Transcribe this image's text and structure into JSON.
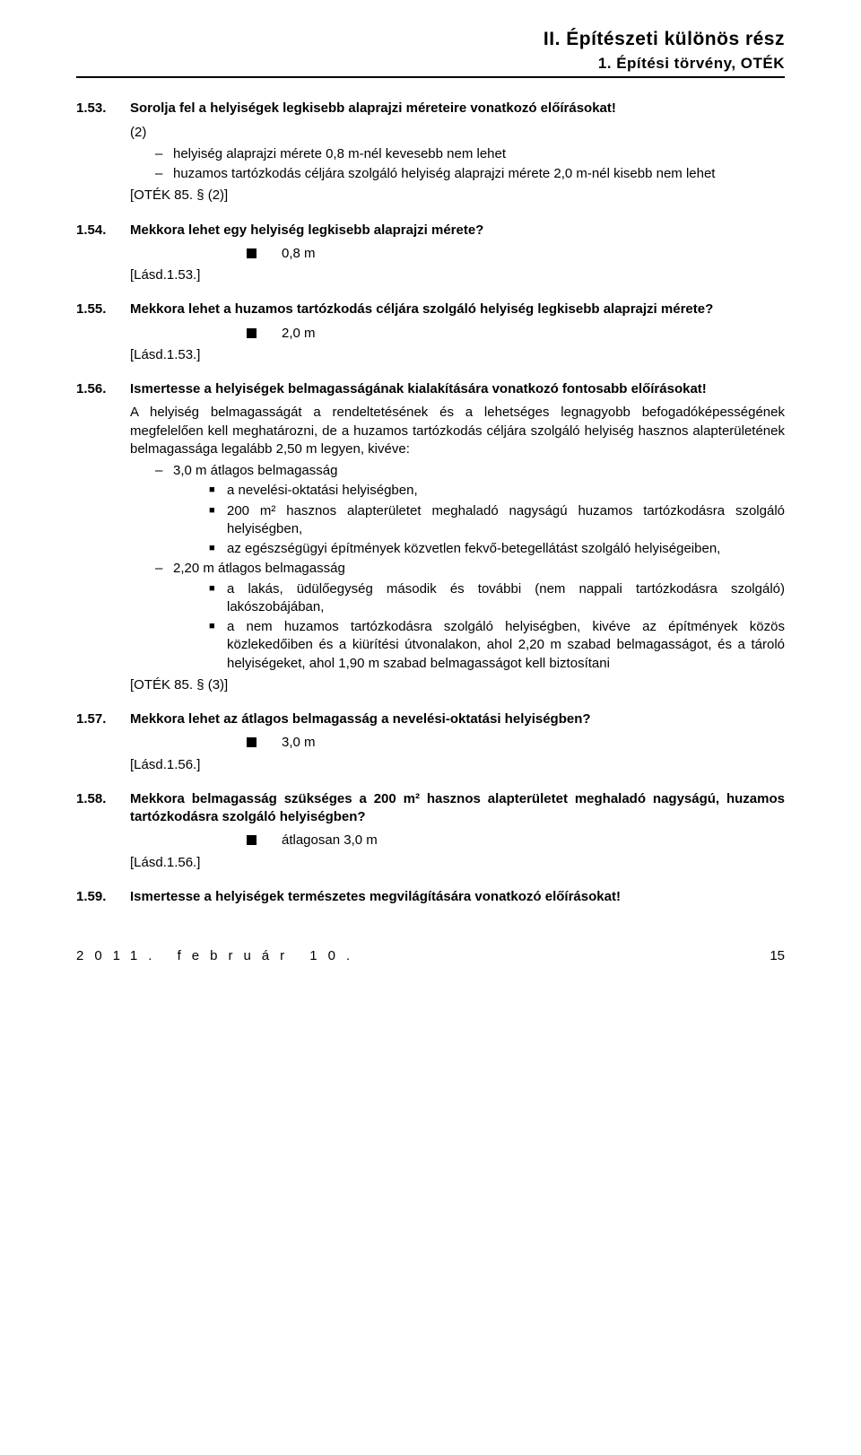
{
  "header": {
    "line1": "II. Építészeti különös rész",
    "line2": "1. Építési törvény, OTÉK"
  },
  "items": [
    {
      "num": "1.53.",
      "question": "Sorolja fel a helyiségek legkisebb alaprajzi méreteire vonatkozó előírásokat!",
      "paren": "(2)",
      "dashes": [
        "helyiség alaprajzi mérete 0,8 m-nél kevesebb nem lehet",
        "huzamos tartózkodás céljára szolgáló helyiség alaprajzi mérete 2,0 m-nél kisebb nem lehet"
      ],
      "citation": "[OTÉK 85. § (2)]"
    },
    {
      "num": "1.54.",
      "question": "Mekkora lehet egy helyiség legkisebb alaprajzi mérete?",
      "answer": "0,8 m",
      "citation": "[Lásd.1.53.]"
    },
    {
      "num": "1.55.",
      "question": "Mekkora lehet a huzamos tartózkodás céljára szolgáló helyiség legkisebb alaprajzi mérete?",
      "answer": "2,0 m",
      "citation": "[Lásd.1.53.]"
    },
    {
      "num": "1.56.",
      "question": "Ismertesse a helyiségek belmagasságának kialakítására vonatkozó fontosabb előírásokat!",
      "para": "A helyiség belmagasságát a rendeltetésének és a lehetséges legnagyobb befogadóképességének megfelelően kell meghatározni, de a huzamos tartózkodás céljára szolgáló helyiség hasznos alapterületének belmagassága legalább 2,50 m legyen, kivéve:",
      "sub": [
        {
          "dash": "3,0 m átlagos belmagasság",
          "squares": [
            "a nevelési-oktatási helyiségben,",
            "200 m² hasznos alapterületet meghaladó nagyságú huzamos tartózkodásra szolgáló helyiségben,",
            "az egészségügyi építmények közvetlen fekvő-betegellátást szolgáló helyiségeiben,"
          ]
        },
        {
          "dash": "2,20 m átlagos belmagasság",
          "squares": [
            "a lakás, üdülőegység második és további (nem nappali tartózkodásra szolgáló) lakószobájában,",
            "a nem huzamos tartózkodásra szolgáló helyiségben, kivéve az építmények közös közlekedőiben és a kiürítési útvonalakon, ahol 2,20 m szabad belmagasságot, és a tároló helyiségeket, ahol 1,90 m szabad belmagasságot kell biztosítani"
          ]
        }
      ],
      "citation": "[OTÉK 85. § (3)]"
    },
    {
      "num": "1.57.",
      "question": "Mekkora lehet az átlagos belmagasság a nevelési-oktatási helyiségben?",
      "answer": "3,0 m",
      "citation": "[Lásd.1.56.]"
    },
    {
      "num": "1.58.",
      "question": "Mekkora belmagasság szükséges a 200 m² hasznos alapterületet meghaladó nagyságú, huzamos tartózkodásra szolgáló helyiségben?",
      "answer": "átlagosan 3,0 m",
      "citation": "[Lásd.1.56.]"
    },
    {
      "num": "1.59.",
      "question": "Ismertesse a helyiségek természetes megvilágítására vonatkozó előírásokat!"
    }
  ],
  "footer": {
    "date": "2011. február 10.",
    "page": "15"
  }
}
